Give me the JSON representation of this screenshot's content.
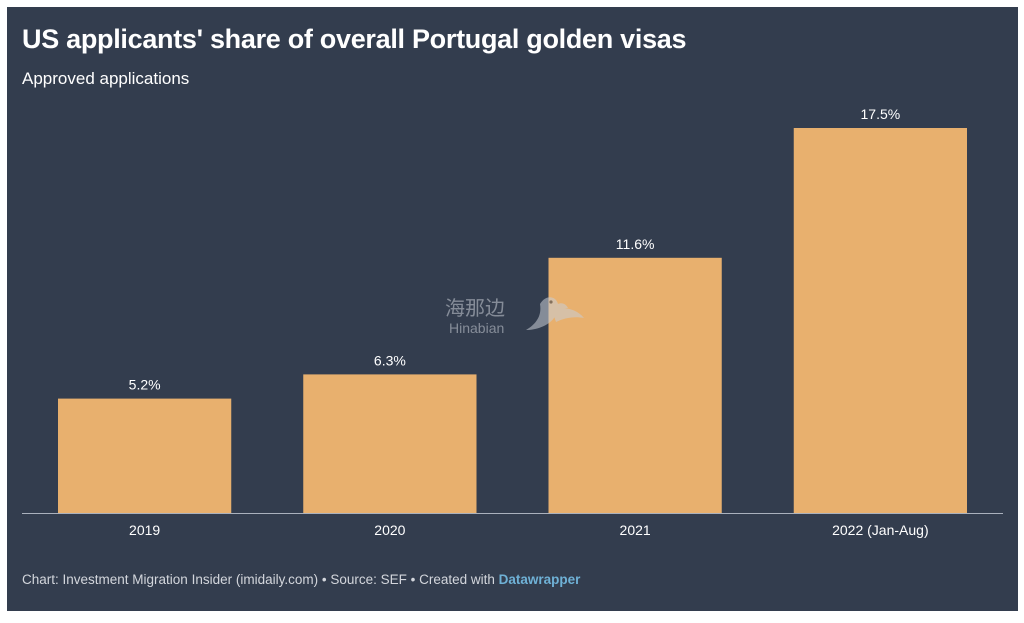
{
  "chart_data": {
    "type": "bar",
    "title": "US applicants' share of overall Portugal golden visas",
    "subtitle": "Approved applications",
    "categories": [
      "2019",
      "2020",
      "2021",
      "2022 (Jan-Aug)"
    ],
    "values": [
      5.2,
      6.3,
      11.6,
      17.5
    ],
    "value_labels": [
      "5.2%",
      "6.3%",
      "11.6%",
      "17.5%"
    ],
    "unit": "%",
    "xlabel": "",
    "ylabel": "",
    "ylim": [
      0,
      17.5
    ],
    "grid": false,
    "bar_color": "#e8b06e",
    "background_color": "#333d4e"
  },
  "footer": {
    "text": "Chart: Investment Migration Insider (imidaily.com) • Source: SEF • Created with ",
    "brand": "Datawrapper"
  },
  "watermark": {
    "cn": "海那边",
    "en": "Hinabian"
  }
}
